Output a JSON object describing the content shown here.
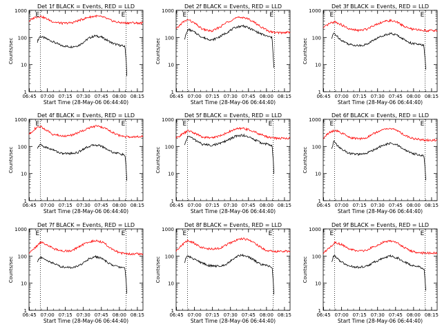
{
  "chart_data": [
    {
      "type": "line",
      "title": "Det 1f BLACK = Events, RED = LLD",
      "xlabel": "Start Time (28-May-06 06:44:40)",
      "ylabel": "Counts/sec",
      "x_ticks": [
        "06:45",
        "07:00",
        "07:15",
        "07:30",
        "07:45",
        "08:00",
        "08:15"
      ],
      "y_ticks": [
        "1",
        "10",
        "100",
        "1000"
      ],
      "ylim": [
        1,
        1000
      ],
      "xlim_minutes": [
        0,
        95
      ],
      "event_markers": [
        {
          "label": "E",
          "minute": 9.5
        },
        {
          "label": "E",
          "minute": 81
        }
      ],
      "series": [
        {
          "name": "Events",
          "color": "#000000",
          "x": [
            7,
            9,
            12,
            20,
            27,
            35,
            41,
            45,
            50,
            55,
            60,
            65,
            70,
            75,
            77,
            79,
            80,
            81,
            81.5
          ],
          "y": [
            70,
            110,
            100,
            70,
            50,
            45,
            50,
            65,
            95,
            115,
            105,
            80,
            60,
            52,
            50,
            48,
            45,
            15,
            4
          ]
        },
        {
          "name": "LLD",
          "color": "#ff0000",
          "x": [
            0,
            5,
            10,
            15,
            20,
            28,
            36,
            42,
            50,
            56,
            62,
            68,
            74,
            80,
            86,
            90,
            95
          ],
          "y": [
            400,
            560,
            600,
            480,
            380,
            330,
            350,
            430,
            560,
            620,
            560,
            430,
            360,
            340,
            350,
            340,
            340
          ]
        }
      ]
    },
    {
      "type": "line",
      "title": "Det 2f BLACK = Events, RED = LLD",
      "xlabel": "Start Time (28-May-06 06:44:40)",
      "ylabel": "Counts/sec",
      "x_ticks": [
        "06:45",
        "07:00",
        "07:15",
        "07:30",
        "07:45",
        "08:00",
        "08:15"
      ],
      "y_ticks": [
        "1",
        "10",
        "100",
        "1000"
      ],
      "ylim": [
        1,
        1000
      ],
      "xlim_minutes": [
        0,
        95
      ],
      "event_markers": [
        {
          "label": "E",
          "minute": 9.5
        },
        {
          "label": "E",
          "minute": 82
        }
      ],
      "series": [
        {
          "name": "Events",
          "color": "#000000",
          "x": [
            7,
            10,
            15,
            22,
            30,
            37,
            43,
            50,
            56,
            63,
            70,
            76,
            80,
            81,
            81.5
          ],
          "y": [
            90,
            200,
            160,
            100,
            80,
            110,
            160,
            240,
            270,
            200,
            140,
            110,
            100,
            20,
            8
          ]
        },
        {
          "name": "LLD",
          "color": "#ff0000",
          "x": [
            0,
            5,
            10,
            16,
            22,
            30,
            37,
            43,
            50,
            56,
            63,
            70,
            77,
            83,
            90,
            95
          ],
          "y": [
            200,
            350,
            460,
            320,
            200,
            170,
            250,
            380,
            520,
            560,
            420,
            260,
            170,
            150,
            150,
            160
          ]
        }
      ]
    },
    {
      "type": "line",
      "title": "Det 3f BLACK = Events, RED = LLD",
      "xlabel": "Start Time (28-May-06 06:44:40)",
      "ylabel": "Counts/sec",
      "x_ticks": [
        "06:45",
        "07:00",
        "07:15",
        "07:30",
        "07:45",
        "08:00",
        "08:15"
      ],
      "y_ticks": [
        "1",
        "10",
        "100",
        "1000"
      ],
      "ylim": [
        1,
        1000
      ],
      "xlim_minutes": [
        0,
        95
      ],
      "event_markers": [
        {
          "label": "E",
          "minute": 9.5
        },
        {
          "label": "E",
          "minute": 85
        }
      ],
      "series": [
        {
          "name": "Events",
          "color": "#000000",
          "x": [
            7,
            9,
            10,
            15,
            22,
            30,
            36,
            42,
            50,
            56,
            62,
            68,
            74,
            80,
            84,
            85,
            85.5
          ],
          "y": [
            90,
            150,
            130,
            80,
            55,
            50,
            55,
            80,
            120,
            140,
            120,
            80,
            60,
            55,
            50,
            15,
            7
          ]
        },
        {
          "name": "LLD",
          "color": "#ff0000",
          "x": [
            0,
            5,
            10,
            16,
            22,
            30,
            36,
            42,
            50,
            56,
            62,
            68,
            74,
            80,
            86,
            90,
            95
          ],
          "y": [
            220,
            320,
            380,
            280,
            200,
            180,
            200,
            280,
            380,
            420,
            360,
            250,
            200,
            190,
            180,
            180,
            180
          ]
        }
      ]
    },
    {
      "type": "line",
      "title": "Det 4f BLACK = Events, RED = LLD",
      "xlabel": "Start Time (28-May-06 06:44:40)",
      "ylabel": "Counts/sec",
      "x_ticks": [
        "06:45",
        "07:00",
        "07:15",
        "07:30",
        "07:45",
        "08:00",
        "08:15"
      ],
      "y_ticks": [
        "1",
        "10",
        "100",
        "1000"
      ],
      "ylim": [
        1,
        1000
      ],
      "xlim_minutes": [
        0,
        95
      ],
      "event_markers": [
        {
          "label": "E",
          "minute": 9.5
        },
        {
          "label": "E",
          "minute": 81
        }
      ],
      "series": [
        {
          "name": "Events",
          "color": "#000000",
          "x": [
            7,
            9,
            12,
            20,
            27,
            35,
            41,
            45,
            50,
            55,
            60,
            65,
            70,
            75,
            78,
            80,
            81,
            81.5
          ],
          "y": [
            80,
            120,
            100,
            75,
            55,
            55,
            60,
            80,
            100,
            115,
            105,
            80,
            60,
            55,
            50,
            48,
            15,
            5
          ]
        },
        {
          "name": "LLD",
          "color": "#ff0000",
          "x": [
            0,
            5,
            10,
            15,
            20,
            28,
            36,
            42,
            50,
            56,
            62,
            68,
            74,
            80,
            86,
            90,
            95
          ],
          "y": [
            280,
            450,
            540,
            380,
            280,
            240,
            260,
            340,
            480,
            560,
            500,
            360,
            260,
            230,
            230,
            230,
            230
          ]
        }
      ]
    },
    {
      "type": "line",
      "title": "Det 5f BLACK = Events, RED = LLD",
      "xlabel": "Start Time (28-May-06 06:44:40)",
      "ylabel": "Counts/sec",
      "x_ticks": [
        "06:45",
        "07:00",
        "07:15",
        "07:30",
        "07:45",
        "08:00",
        "08:15"
      ],
      "y_ticks": [
        "1",
        "10",
        "100",
        "1000"
      ],
      "ylim": [
        1,
        1000
      ],
      "xlim_minutes": [
        0,
        95
      ],
      "event_markers": [
        {
          "label": "E",
          "minute": 9.5
        },
        {
          "label": "E",
          "minute": 81
        }
      ],
      "series": [
        {
          "name": "Events",
          "color": "#000000",
          "x": [
            7,
            10,
            15,
            22,
            30,
            37,
            43,
            50,
            56,
            63,
            70,
            76,
            80,
            81,
            81.5
          ],
          "y": [
            110,
            250,
            180,
            120,
            110,
            130,
            170,
            240,
            260,
            200,
            140,
            120,
            110,
            30,
            10
          ]
        },
        {
          "name": "LLD",
          "color": "#ff0000",
          "x": [
            0,
            5,
            10,
            16,
            22,
            30,
            37,
            43,
            50,
            56,
            63,
            70,
            77,
            83,
            90,
            95
          ],
          "y": [
            200,
            280,
            380,
            300,
            220,
            210,
            250,
            330,
            440,
            470,
            380,
            280,
            220,
            200,
            200,
            200
          ]
        }
      ]
    },
    {
      "type": "line",
      "title": "Det 6f BLACK = Events, RED = LLD",
      "xlabel": "Start Time (28-May-06 06:44:40)",
      "ylabel": "Counts/sec",
      "x_ticks": [
        "06:45",
        "07:00",
        "07:15",
        "07:30",
        "07:45",
        "08:00",
        "08:15"
      ],
      "y_ticks": [
        "1",
        "10",
        "100",
        "1000"
      ],
      "ylim": [
        1,
        1000
      ],
      "xlim_minutes": [
        0,
        95
      ],
      "event_markers": [
        {
          "label": "E",
          "minute": 9.5
        },
        {
          "label": "E",
          "minute": 85
        }
      ],
      "series": [
        {
          "name": "Events",
          "color": "#000000",
          "x": [
            7,
            9,
            10,
            15,
            22,
            30,
            36,
            42,
            50,
            56,
            62,
            68,
            74,
            80,
            84,
            85,
            85.5
          ],
          "y": [
            80,
            160,
            130,
            80,
            55,
            50,
            55,
            75,
            110,
            130,
            110,
            75,
            55,
            50,
            45,
            15,
            6
          ]
        },
        {
          "name": "LLD",
          "color": "#ff0000",
          "x": [
            0,
            5,
            10,
            16,
            22,
            30,
            36,
            42,
            50,
            56,
            62,
            68,
            74,
            80,
            86,
            90,
            95
          ],
          "y": [
            200,
            320,
            400,
            300,
            210,
            190,
            210,
            300,
            420,
            460,
            380,
            260,
            200,
            180,
            170,
            170,
            170
          ]
        }
      ]
    },
    {
      "type": "line",
      "title": "Det 7f BLACK = Events, RED = LLD",
      "xlabel": "Start Time (28-May-06 06:44:40)",
      "ylabel": "Counts/sec",
      "x_ticks": [
        "06:45",
        "07:00",
        "07:15",
        "07:30",
        "07:45",
        "08:00",
        "08:15"
      ],
      "y_ticks": [
        "1",
        "10",
        "100",
        "1000"
      ],
      "ylim": [
        1,
        1000
      ],
      "xlim_minutes": [
        0,
        95
      ],
      "event_markers": [
        {
          "label": "E",
          "minute": 9.5
        },
        {
          "label": "E",
          "minute": 81
        }
      ],
      "series": [
        {
          "name": "Events",
          "color": "#000000",
          "x": [
            7,
            9,
            12,
            20,
            27,
            35,
            41,
            45,
            50,
            55,
            60,
            65,
            70,
            75,
            78,
            80,
            81,
            81.5
          ],
          "y": [
            60,
            90,
            80,
            55,
            40,
            38,
            42,
            55,
            80,
            95,
            85,
            60,
            45,
            40,
            38,
            35,
            12,
            4
          ]
        },
        {
          "name": "LLD",
          "color": "#ff0000",
          "x": [
            0,
            5,
            10,
            15,
            20,
            28,
            36,
            42,
            50,
            56,
            62,
            68,
            74,
            80,
            86,
            90,
            95
          ],
          "y": [
            130,
            200,
            330,
            260,
            190,
            150,
            160,
            230,
            330,
            380,
            320,
            200,
            140,
            120,
            120,
            120,
            120
          ]
        }
      ]
    },
    {
      "type": "line",
      "title": "Det 8f BLACK = Events, RED = LLD",
      "xlabel": "Start Time (28-May-06 06:44:40)",
      "ylabel": "Counts/sec",
      "x_ticks": [
        "06:45",
        "07:00",
        "07:15",
        "07:30",
        "07:45",
        "08:00",
        "08:15"
      ],
      "y_ticks": [
        "1",
        "10",
        "100",
        "1000"
      ],
      "ylim": [
        1,
        1000
      ],
      "xlim_minutes": [
        0,
        95
      ],
      "event_markers": [
        {
          "label": "E",
          "minute": 9.5
        },
        {
          "label": "E",
          "minute": 81
        }
      ],
      "series": [
        {
          "name": "Events",
          "color": "#000000",
          "x": [
            7,
            9,
            12,
            20,
            27,
            35,
            41,
            45,
            50,
            55,
            60,
            65,
            70,
            75,
            78,
            80,
            81,
            81.5
          ],
          "y": [
            60,
            100,
            90,
            60,
            45,
            42,
            48,
            65,
            95,
            110,
            95,
            70,
            50,
            45,
            42,
            40,
            12,
            4
          ]
        },
        {
          "name": "LLD",
          "color": "#ff0000",
          "x": [
            0,
            5,
            10,
            15,
            20,
            28,
            36,
            42,
            50,
            56,
            62,
            68,
            74,
            80,
            86,
            90,
            95
          ],
          "y": [
            160,
            260,
            380,
            300,
            220,
            180,
            190,
            260,
            380,
            440,
            370,
            250,
            170,
            150,
            150,
            150,
            150
          ]
        }
      ]
    },
    {
      "type": "line",
      "title": "Det 9f BLACK = Events, RED = LLD",
      "xlabel": "Start Time (28-May-06 06:44:40)",
      "ylabel": "Counts/sec",
      "x_ticks": [
        "06:45",
        "07:00",
        "07:15",
        "07:30",
        "07:45",
        "08:00",
        "08:15"
      ],
      "y_ticks": [
        "1",
        "10",
        "100",
        "1000"
      ],
      "ylim": [
        1,
        1000
      ],
      "xlim_minutes": [
        0,
        95
      ],
      "event_markers": [
        {
          "label": "E",
          "minute": 9.5
        },
        {
          "label": "E",
          "minute": 85
        }
      ],
      "series": [
        {
          "name": "Events",
          "color": "#000000",
          "x": [
            7,
            9,
            10,
            15,
            22,
            30,
            36,
            42,
            50,
            56,
            62,
            68,
            74,
            80,
            84,
            85,
            85.5
          ],
          "y": [
            60,
            110,
            95,
            60,
            42,
            38,
            42,
            58,
            85,
            100,
            85,
            60,
            45,
            40,
            35,
            12,
            5
          ]
        },
        {
          "name": "LLD",
          "color": "#ff0000",
          "x": [
            0,
            5,
            10,
            16,
            22,
            30,
            36,
            42,
            50,
            56,
            62,
            68,
            74,
            80,
            86,
            90,
            95
          ],
          "y": [
            130,
            200,
            320,
            260,
            180,
            150,
            160,
            220,
            320,
            360,
            300,
            200,
            150,
            130,
            130,
            130,
            130
          ]
        }
      ]
    }
  ]
}
